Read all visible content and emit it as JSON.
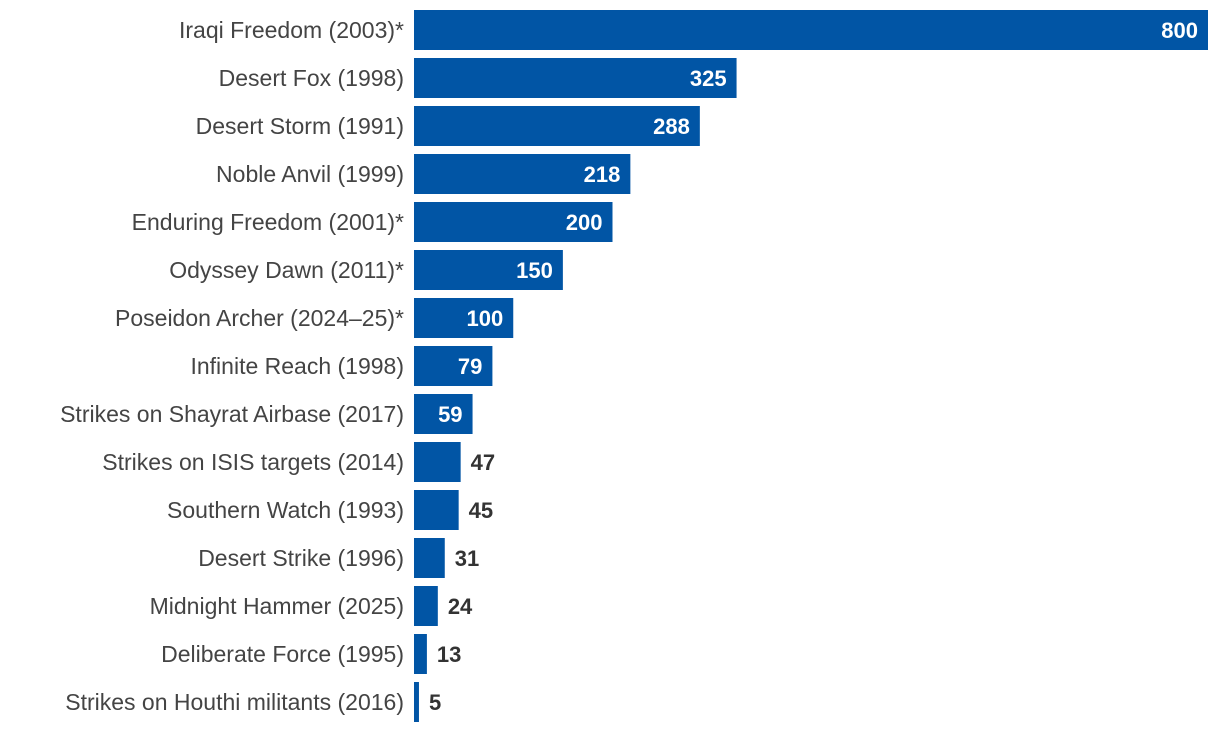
{
  "chart_data": {
    "type": "bar",
    "orientation": "horizontal",
    "title": "",
    "xlabel": "",
    "ylabel": "",
    "categories": [
      "Iraqi Freedom (2003)*",
      "Desert Fox (1998)",
      "Desert Storm (1991)",
      "Noble Anvil (1999)",
      "Enduring Freedom (2001)*",
      "Odyssey Dawn (2011)*",
      "Poseidon Archer (2024–25)*",
      "Infinite Reach (1998)",
      "Strikes on Shayrat Airbase (2017)",
      "Strikes on ISIS targets (2014)",
      "Southern Watch (1993)",
      "Desert Strike (1996)",
      "Midnight Hammer (2025)",
      "Deliberate Force (1995)",
      "Strikes on Houthi militants (2016)"
    ],
    "values": [
      800,
      325,
      288,
      218,
      200,
      150,
      100,
      79,
      59,
      47,
      45,
      31,
      24,
      13,
      5
    ],
    "xlim": [
      0,
      800
    ],
    "grid": false,
    "legend": "none",
    "colors": {
      "bar": "#0155a5",
      "label_inside": "#ffffff",
      "label_outside": "#333333",
      "category_text": "#444444"
    }
  }
}
